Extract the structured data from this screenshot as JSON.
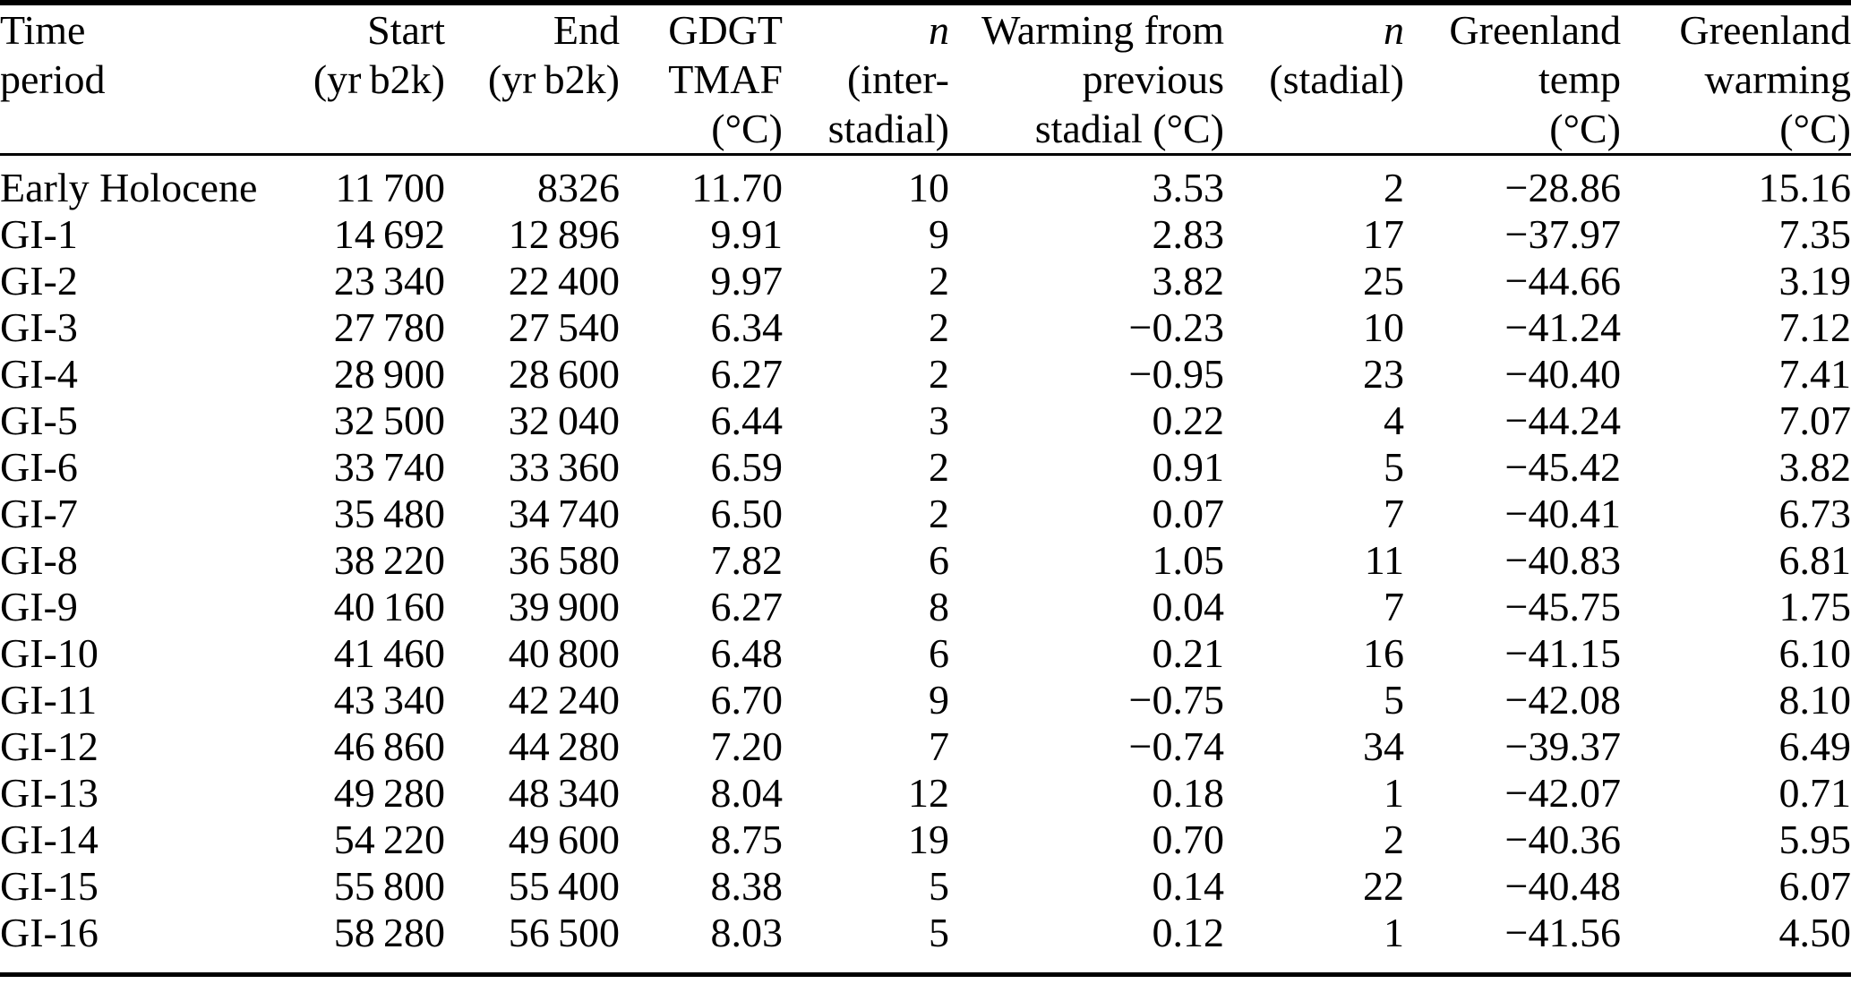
{
  "colors": {
    "text": "#000000",
    "background": "#ffffff",
    "rule": "#000000"
  },
  "table": {
    "columns": [
      {
        "id": "time-period",
        "lines": [
          "Time",
          "period"
        ],
        "align": "left",
        "italic_first_line": false
      },
      {
        "id": "start",
        "lines": [
          "Start",
          "(yr b2k)"
        ],
        "align": "right",
        "italic_first_line": false
      },
      {
        "id": "end",
        "lines": [
          "End",
          "(yr b2k)"
        ],
        "align": "right",
        "italic_first_line": false
      },
      {
        "id": "gdgt-tmaf",
        "lines": [
          "GDGT",
          "TMAF",
          "(°C)"
        ],
        "align": "right",
        "italic_first_line": false
      },
      {
        "id": "n-interstadial",
        "lines": [
          "n",
          "(inter-",
          "stadial)"
        ],
        "align": "right",
        "italic_first_line": true
      },
      {
        "id": "warming-from-previous-stadial",
        "lines": [
          "Warming from",
          "previous",
          "stadial (°C)"
        ],
        "align": "right",
        "italic_first_line": false
      },
      {
        "id": "n-stadial",
        "lines": [
          "n",
          "(stadial)"
        ],
        "align": "right",
        "italic_first_line": true
      },
      {
        "id": "greenland-temp",
        "lines": [
          "Greenland",
          "temp",
          "(°C)"
        ],
        "align": "right",
        "italic_first_line": false
      },
      {
        "id": "greenland-warming",
        "lines": [
          "Greenland",
          "warming",
          "(°C)"
        ],
        "align": "right",
        "italic_first_line": false
      }
    ],
    "rows": [
      [
        "Early Holocene",
        "11 700",
        "8326",
        "11.70",
        "10",
        "3.53",
        "2",
        "−28.86",
        "15.16"
      ],
      [
        "GI-1",
        "14 692",
        "12 896",
        "9.91",
        "9",
        "2.83",
        "17",
        "−37.97",
        "7.35"
      ],
      [
        "GI-2",
        "23 340",
        "22 400",
        "9.97",
        "2",
        "3.82",
        "25",
        "−44.66",
        "3.19"
      ],
      [
        "GI-3",
        "27 780",
        "27 540",
        "6.34",
        "2",
        "−0.23",
        "10",
        "−41.24",
        "7.12"
      ],
      [
        "GI-4",
        "28 900",
        "28 600",
        "6.27",
        "2",
        "−0.95",
        "23",
        "−40.40",
        "7.41"
      ],
      [
        "GI-5",
        "32 500",
        "32 040",
        "6.44",
        "3",
        "0.22",
        "4",
        "−44.24",
        "7.07"
      ],
      [
        "GI-6",
        "33 740",
        "33 360",
        "6.59",
        "2",
        "0.91",
        "5",
        "−45.42",
        "3.82"
      ],
      [
        "GI-7",
        "35 480",
        "34 740",
        "6.50",
        "2",
        "0.07",
        "7",
        "−40.41",
        "6.73"
      ],
      [
        "GI-8",
        "38 220",
        "36 580",
        "7.82",
        "6",
        "1.05",
        "11",
        "−40.83",
        "6.81"
      ],
      [
        "GI-9",
        "40 160",
        "39 900",
        "6.27",
        "8",
        "0.04",
        "7",
        "−45.75",
        "1.75"
      ],
      [
        "GI-10",
        "41 460",
        "40 800",
        "6.48",
        "6",
        "0.21",
        "16",
        "−41.15",
        "6.10"
      ],
      [
        "GI-11",
        "43 340",
        "42 240",
        "6.70",
        "9",
        "−0.75",
        "5",
        "−42.08",
        "8.10"
      ],
      [
        "GI-12",
        "46 860",
        "44 280",
        "7.20",
        "7",
        "−0.74",
        "34",
        "−39.37",
        "6.49"
      ],
      [
        "GI-13",
        "49 280",
        "48 340",
        "8.04",
        "12",
        "0.18",
        "1",
        "−42.07",
        "0.71"
      ],
      [
        "GI-14",
        "54 220",
        "49 600",
        "8.75",
        "19",
        "0.70",
        "2",
        "−40.36",
        "5.95"
      ],
      [
        "GI-15",
        "55 800",
        "55 400",
        "8.38",
        "5",
        "0.14",
        "22",
        "−40.48",
        "6.07"
      ],
      [
        "GI-16",
        "58 280",
        "56 500",
        "8.03",
        "5",
        "0.12",
        "1",
        "−41.56",
        "4.50"
      ]
    ]
  }
}
